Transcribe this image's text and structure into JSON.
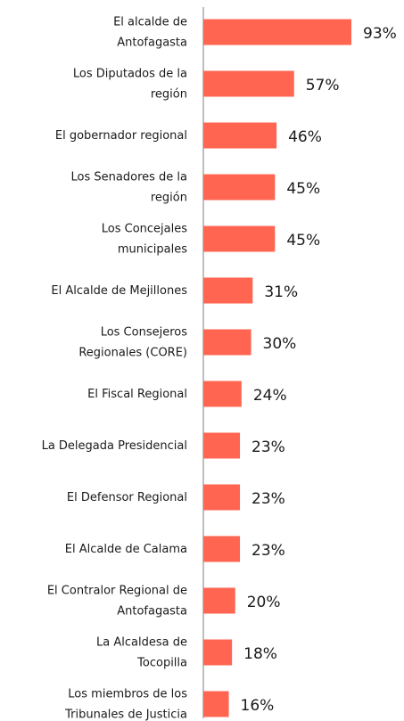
{
  "chart_data": {
    "type": "bar",
    "orientation": "horizontal",
    "categories": [
      "El alcalde de\nAntofagasta",
      "Los Diputados de la\nregión",
      "El gobernador regional",
      "Los Senadores de la\nregión",
      "Los Concejales\nmunicipales",
      "El Alcalde de Mejillones",
      "Los Consejeros\nRegionales (CORE)",
      "El Fiscal Regional",
      "La Delegada Presidencial",
      "El Defensor Regional",
      "El Alcalde de Calama",
      "El Contralor Regional de\nAntofagasta",
      "La Alcaldesa de\nTocopilla",
      "Los miembros de los\nTribunales de Justicia"
    ],
    "values": [
      93,
      57,
      46,
      45,
      45,
      31,
      30,
      24,
      23,
      23,
      23,
      20,
      18,
      16
    ],
    "value_labels": [
      "93%",
      "57%",
      "46%",
      "45%",
      "45%",
      "31%",
      "30%",
      "24%",
      "23%",
      "23%",
      "23%",
      "20%",
      "18%",
      "16%"
    ],
    "color": "#ff6550",
    "xlim": [
      0,
      100
    ]
  }
}
